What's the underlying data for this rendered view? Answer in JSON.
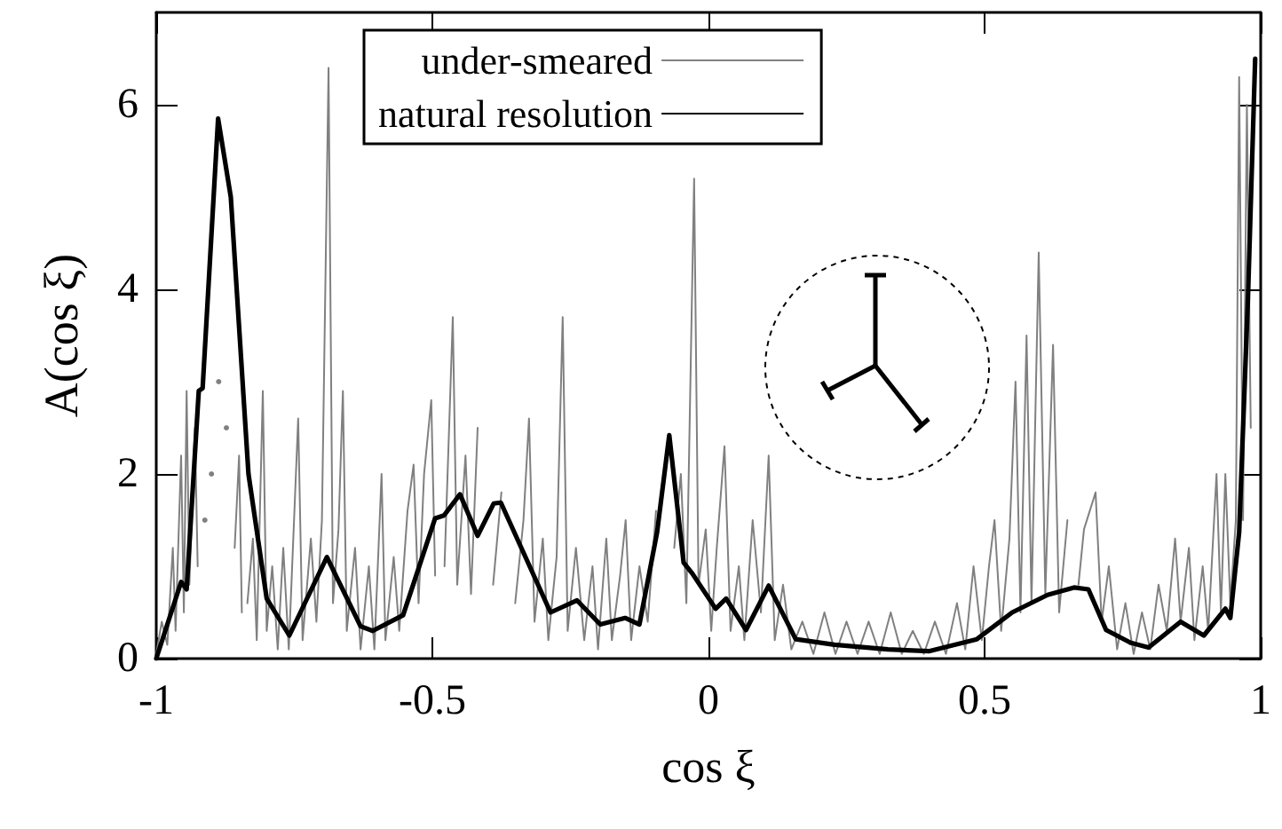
{
  "chart_data": {
    "type": "line",
    "xlabel": "cos ξ",
    "ylabel": "A(cos ξ)",
    "xlim": [
      -1,
      1
    ],
    "ylim": [
      0,
      7
    ],
    "xticks": [
      -1,
      -0.5,
      0,
      0.5,
      1
    ],
    "yticks": [
      0,
      2,
      4,
      6
    ],
    "legend": "top",
    "line_style": "solid",
    "marker": "none",
    "series": [
      {
        "name": "under-smeared",
        "color": "#808080",
        "x": [
          -1,
          -0.99,
          -0.98,
          -0.97,
          -0.965,
          -0.955,
          -0.95,
          -0.945,
          -0.94,
          -0.93,
          -0.925,
          -0.918,
          -0.912,
          -0.905,
          -0.9,
          -0.893,
          -0.887,
          -0.88,
          -0.873,
          -0.865,
          -0.858,
          -0.85,
          -0.845,
          -0.84,
          -0.835,
          -0.825,
          -0.818,
          -0.807,
          -0.8,
          -0.79,
          -0.78,
          -0.77,
          -0.76,
          -0.743,
          -0.735,
          -0.72,
          -0.71,
          -0.7,
          -0.688,
          -0.68,
          -0.67,
          -0.662,
          -0.655,
          -0.64,
          -0.63,
          -0.615,
          -0.605,
          -0.592,
          -0.585,
          -0.57,
          -0.56,
          -0.545,
          -0.534,
          -0.525,
          -0.515,
          -0.502,
          -0.495,
          -0.486,
          -0.478,
          -0.463,
          -0.455,
          -0.44,
          -0.43,
          -0.418,
          -0.405,
          -0.399,
          -0.39,
          -0.375,
          -0.36,
          -0.35,
          -0.335,
          -0.325,
          -0.315,
          -0.3,
          -0.29,
          -0.275,
          -0.264,
          -0.255,
          -0.24,
          -0.225,
          -0.21,
          -0.2,
          -0.185,
          -0.175,
          -0.16,
          -0.15,
          -0.14,
          -0.125,
          -0.11,
          -0.095,
          -0.08,
          -0.071,
          -0.062,
          -0.05,
          -0.04,
          -0.026,
          -0.018,
          -0.005,
          0.005,
          0.015,
          0.029,
          0.04,
          0.055,
          0.065,
          0.08,
          0.095,
          0.109,
          0.12,
          0.135,
          0.15,
          0.17,
          0.19,
          0.21,
          0.23,
          0.25,
          0.27,
          0.29,
          0.31,
          0.33,
          0.35,
          0.37,
          0.39,
          0.41,
          0.43,
          0.45,
          0.465,
          0.48,
          0.495,
          0.508,
          0.518,
          0.53,
          0.545,
          0.556,
          0.565,
          0.576,
          0.585,
          0.598,
          0.61,
          0.624,
          0.635,
          0.65,
          0.662,
          0.67,
          0.68,
          0.701,
          0.712,
          0.725,
          0.74,
          0.755,
          0.77,
          0.785,
          0.8,
          0.815,
          0.83,
          0.845,
          0.855,
          0.87,
          0.88,
          0.895,
          0.905,
          0.92,
          0.928,
          0.936,
          0.945,
          0.955,
          0.961,
          0.968,
          0.975,
          0.982
        ],
        "values": [
          0.05,
          0.4,
          0.15,
          1.2,
          0.3,
          2.2,
          0.5,
          2.9,
          0.8,
          2.5,
          1.0,
          null,
          1.5,
          null,
          2.0,
          null,
          3.0,
          null,
          2.5,
          null,
          1.2,
          2.2,
          0.5,
          null,
          0.6,
          1.3,
          0.2,
          2.9,
          0.3,
          1.0,
          0.1,
          1.2,
          0.1,
          2.6,
          0.2,
          1.3,
          0.4,
          1.5,
          6.4,
          0.6,
          1.4,
          2.9,
          0.3,
          1.2,
          0.1,
          1.0,
          0.1,
          2.0,
          0.2,
          1.1,
          0.3,
          1.6,
          2.1,
          0.6,
          2.0,
          2.8,
          0.9,
          null,
          1.0,
          3.7,
          0.8,
          2.2,
          0.7,
          2.5,
          null,
          null,
          0.8,
          1.8,
          null,
          0.6,
          1.5,
          2.6,
          0.4,
          1.3,
          0.2,
          1.1,
          3.7,
          0.3,
          1.2,
          0.2,
          1.0,
          0.1,
          1.3,
          0.2,
          0.9,
          1.5,
          0.2,
          1.0,
          0.4,
          1.6,
          null,
          null,
          1.2,
          2.0,
          0.6,
          5.2,
          0.8,
          1.4,
          0.3,
          1.2,
          2.3,
          0.3,
          1.0,
          0.2,
          1.5,
          0.5,
          2.2,
          0.2,
          0.8,
          0.1,
          0.4,
          0.05,
          0.5,
          0.05,
          0.4,
          0.05,
          0.4,
          0.05,
          0.5,
          0.05,
          0.3,
          0.05,
          0.4,
          0.05,
          0.6,
          0.1,
          1.0,
          0.2,
          1.0,
          1.5,
          0.3,
          1.3,
          3.0,
          0.5,
          3.5,
          0.6,
          4.4,
          0.7,
          3.4,
          0.5,
          1.5,
          null,
          0.8,
          1.4,
          1.8,
          0.4,
          1.0,
          0.1,
          0.6,
          0.05,
          0.5,
          0.1,
          0.8,
          0.3,
          1.3,
          0.4,
          1.2,
          0.2,
          1.0,
          0.3,
          2.0,
          0.5,
          2.0,
          0.6,
          1.5,
          6.3,
          1.5,
          6.0,
          2.5
        ]
      },
      {
        "name": "natural resolution",
        "color": "#000000",
        "x": [
          -1,
          -0.955,
          -0.945,
          -0.923,
          -0.916,
          -0.888,
          -0.865,
          -0.833,
          -0.8,
          -0.759,
          -0.691,
          -0.63,
          -0.608,
          -0.553,
          -0.495,
          -0.479,
          -0.45,
          -0.418,
          -0.389,
          -0.376,
          -0.286,
          -0.238,
          -0.196,
          -0.151,
          -0.125,
          -0.093,
          -0.071,
          -0.045,
          -0.029,
          0.013,
          0.032,
          0.068,
          0.109,
          0.158,
          0.228,
          0.325,
          0.399,
          0.486,
          0.55,
          0.614,
          0.662,
          0.688,
          0.72,
          0.765,
          0.797,
          0.855,
          0.897,
          0.936,
          0.945,
          0.961,
          0.977,
          0.99
        ],
        "values": [
          0,
          0.83,
          0.75,
          2.9,
          2.93,
          5.85,
          5.0,
          2.0,
          0.65,
          0.25,
          1.1,
          0.35,
          0.3,
          0.47,
          1.52,
          1.55,
          1.78,
          1.33,
          1.68,
          1.69,
          0.5,
          0.63,
          0.37,
          0.44,
          0.37,
          1.37,
          2.42,
          1.04,
          0.92,
          0.54,
          0.65,
          0.31,
          0.79,
          0.21,
          0.15,
          0.1,
          0.08,
          0.21,
          0.5,
          0.69,
          0.77,
          0.75,
          0.31,
          0.17,
          0.12,
          0.4,
          0.25,
          0.54,
          0.44,
          1.37,
          3.92,
          6.5
        ]
      }
    ]
  }
}
